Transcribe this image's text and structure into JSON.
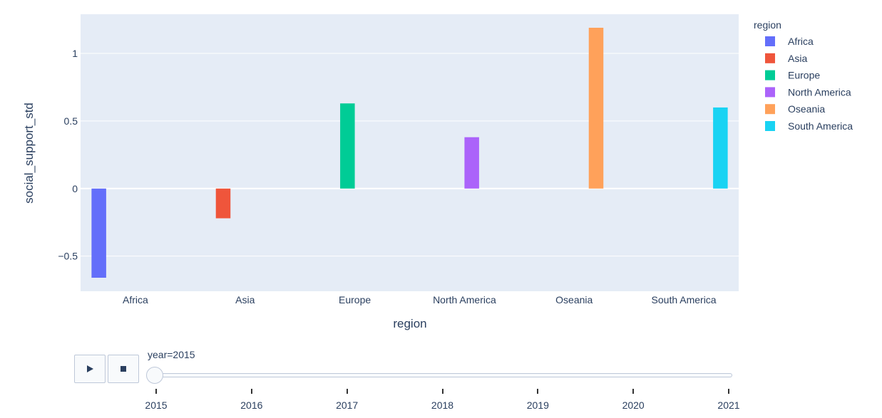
{
  "chart_data": {
    "type": "bar",
    "xlabel": "region",
    "ylabel": "social_support_std",
    "categories": [
      "Africa",
      "Asia",
      "Europe",
      "North America",
      "Oseania",
      "South America"
    ],
    "series": [
      {
        "name": "Africa",
        "color": "#636efa",
        "values": [
          -0.66,
          null,
          null,
          null,
          null,
          null
        ]
      },
      {
        "name": "Asia",
        "color": "#ef553b",
        "values": [
          null,
          -0.22,
          null,
          null,
          null,
          null
        ]
      },
      {
        "name": "Europe",
        "color": "#00cc96",
        "values": [
          null,
          null,
          0.63,
          null,
          null,
          null
        ]
      },
      {
        "name": "North America",
        "color": "#ab63fa",
        "values": [
          null,
          null,
          null,
          0.38,
          null,
          null
        ]
      },
      {
        "name": "Oseania",
        "color": "#ffa15a",
        "values": [
          null,
          null,
          null,
          null,
          1.19,
          null
        ]
      },
      {
        "name": "South America",
        "color": "#19d3f3",
        "values": [
          null,
          null,
          null,
          null,
          null,
          0.6
        ]
      }
    ],
    "ylim": [
      -0.76,
      1.29
    ],
    "yticks": [
      -0.5,
      0,
      0.5,
      1
    ],
    "ytick_labels": [
      "−0.5",
      "0",
      "0.5",
      "1"
    ],
    "legend": {
      "title": "region",
      "position": "right"
    },
    "grid": true
  },
  "animation": {
    "current_label": "year=2015",
    "current_value": 2015,
    "steps": [
      "2015",
      "2016",
      "2017",
      "2018",
      "2019",
      "2020",
      "2021"
    ],
    "play_icon": "play-icon",
    "stop_icon": "stop-icon"
  }
}
